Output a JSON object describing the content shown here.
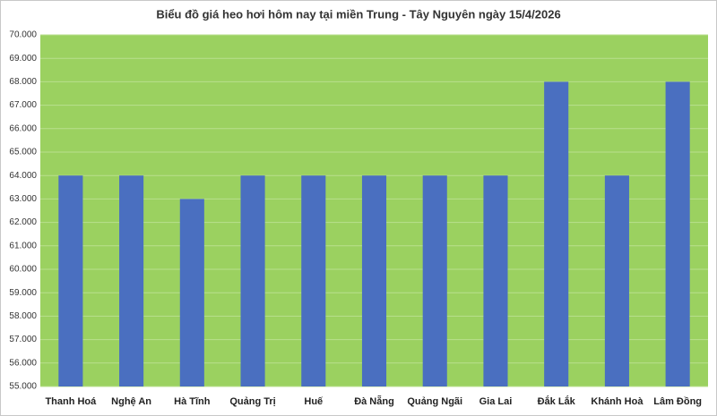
{
  "chart_data": {
    "type": "bar",
    "title": "Biểu đồ giá heo hơi hôm nay tại miền Trung - Tây Nguyên ngày 15/4/2026",
    "categories": [
      "Thanh Hoá",
      "Nghệ An",
      "Hà Tĩnh",
      "Quảng Trị",
      "Huế",
      "Đà Nẵng",
      "Quảng Ngãi",
      "Gia Lai",
      "Đắk Lắk",
      "Khánh Hoà",
      "Lâm Đồng"
    ],
    "values": [
      64000,
      64000,
      63000,
      64000,
      64000,
      64000,
      64000,
      64000,
      68000,
      64000,
      68000
    ],
    "color": "#4a6fc0",
    "ylim": [
      55000,
      70000
    ],
    "yticks": [
      {
        "value": 55000,
        "label": "55.000"
      },
      {
        "value": 56000,
        "label": "56.000"
      },
      {
        "value": 57000,
        "label": "57.000"
      },
      {
        "value": 58000,
        "label": "58.000"
      },
      {
        "value": 59000,
        "label": "59.000"
      },
      {
        "value": 60000,
        "label": "60.000"
      },
      {
        "value": 61000,
        "label": "61.000"
      },
      {
        "value": 62000,
        "label": "62.000"
      },
      {
        "value": 63000,
        "label": "63.000"
      },
      {
        "value": 64000,
        "label": "64.000"
      },
      {
        "value": 65000,
        "label": "65.000"
      },
      {
        "value": 66000,
        "label": "66.000"
      },
      {
        "value": 67000,
        "label": "67.000"
      },
      {
        "value": 68000,
        "label": "68.000"
      },
      {
        "value": 69000,
        "label": "69.000"
      },
      {
        "value": 70000,
        "label": "70.000"
      }
    ],
    "grid": true
  }
}
